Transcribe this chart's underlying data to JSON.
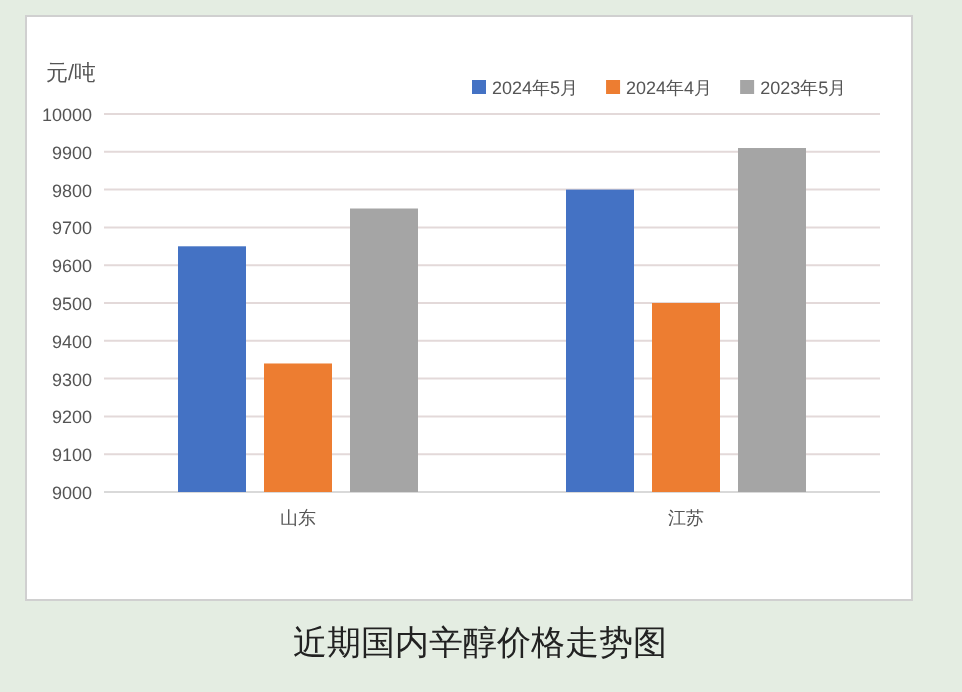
{
  "chart_data": {
    "type": "bar",
    "title": "近期国内辛醇价格走势图",
    "ylabel": "元/吨",
    "categories": [
      "山东",
      "江苏"
    ],
    "series": [
      {
        "name": "2024年5月",
        "color": "#4472c4",
        "values": [
          9650,
          9800
        ]
      },
      {
        "name": "2024年4月",
        "color": "#ed7d31",
        "values": [
          9340,
          9500
        ]
      },
      {
        "name": "2023年5月",
        "color": "#a5a5a5",
        "values": [
          9750,
          9910
        ]
      }
    ],
    "ylim": [
      9000,
      10000
    ],
    "yticks": [
      9000,
      9100,
      9200,
      9300,
      9400,
      9500,
      9600,
      9700,
      9800,
      9900,
      10000
    ],
    "grid": "y",
    "legend": "top right"
  }
}
